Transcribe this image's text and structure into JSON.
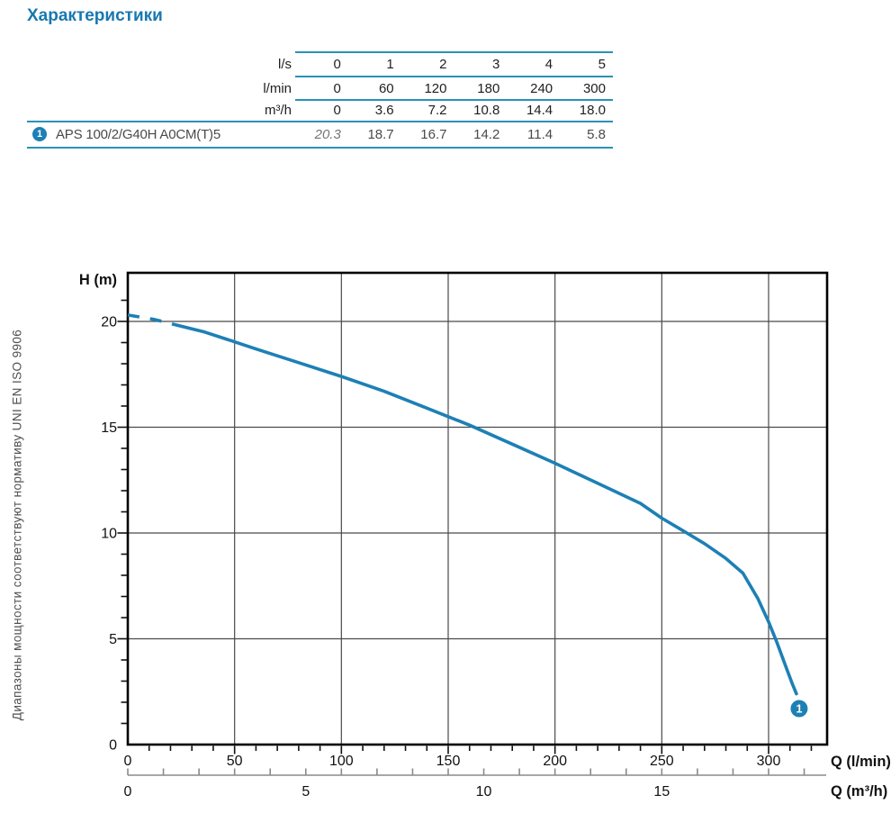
{
  "title": "Характеристики",
  "side_note": "Диапазоны мощности соответствуют нормативу UNI EN ISO 9906",
  "colors": {
    "title": "#1878b0",
    "table_line": "#2a91b7",
    "curve": "#1d80b5",
    "badge": "#1d80b5",
    "grid": "#4a4a4a",
    "axis": "#111111",
    "secondary_axis": "#8a8a8a",
    "note_text": "#4f4f4f",
    "text": "#1f1f1f"
  },
  "table": {
    "unit_rows": [
      {
        "unit": "l/s",
        "values": [
          "0",
          "1",
          "2",
          "3",
          "4",
          "5"
        ]
      },
      {
        "unit": "l/min",
        "values": [
          "0",
          "60",
          "120",
          "180",
          "240",
          "300"
        ]
      },
      {
        "unit": "m³/h",
        "values": [
          "0",
          "3.6",
          "7.2",
          "10.8",
          "14.4",
          "18.0"
        ]
      }
    ],
    "pump_rows": [
      {
        "badge": "1",
        "model": "APS 100/2/G40H A0CM(T)5",
        "values": [
          "20.3",
          "18.7",
          "16.7",
          "14.2",
          "11.4",
          "5.8"
        ]
      }
    ]
  },
  "chart_data": {
    "type": "line",
    "title": "",
    "ylabel": "H (m)",
    "xlabel_primary": "Q (l/min)",
    "xlabel_secondary": "Q (m³/h)",
    "x_range_lmin": [
      0,
      328
    ],
    "y_range_m": [
      0,
      22.3
    ],
    "x_major_ticks_lmin": [
      0,
      50,
      100,
      150,
      200,
      250,
      300
    ],
    "x_minor_step_lmin": 10,
    "x_minor_max_lmin": 320,
    "y_major_ticks_m": [
      0,
      5,
      10,
      15,
      20
    ],
    "y_minor_step_m": 1,
    "y_minor_max_m": 21,
    "secondary_major_ticks_m3h": [
      0,
      5,
      10,
      15
    ],
    "secondary_minor_step_m3h": 1,
    "secondary_minor_max_m3h": 19,
    "lmin_per_m3h": 16.6667,
    "grid_x_lmin": [
      50,
      100,
      150,
      200,
      250,
      300
    ],
    "grid_y_m": [
      5,
      10,
      15,
      20
    ],
    "flow_ls_values": [
      0,
      1,
      2,
      3,
      4,
      5
    ],
    "flow_lmin_values": [
      0,
      60,
      120,
      180,
      240,
      300
    ],
    "flow_m3h_values": [
      0,
      3.6,
      7.2,
      10.8,
      14.4,
      18.0
    ],
    "head_m_values": [
      20.3,
      18.7,
      16.7,
      14.2,
      11.4,
      5.8
    ],
    "series": [
      {
        "name": "APS 100/2/G40H A0CM(T)5",
        "marker_label": "1",
        "marker_at_lmin_h": [
          314.3,
          1.7
        ],
        "dashed_until_lmin": 24,
        "points_lmin_h": [
          [
            0,
            20.3
          ],
          [
            12,
            20.1
          ],
          [
            24,
            19.8
          ],
          [
            36,
            19.5
          ],
          [
            48,
            19.1
          ],
          [
            60,
            18.7
          ],
          [
            80,
            18.05
          ],
          [
            100,
            17.4
          ],
          [
            120,
            16.7
          ],
          [
            140,
            15.9
          ],
          [
            160,
            15.1
          ],
          [
            180,
            14.2
          ],
          [
            200,
            13.3
          ],
          [
            220,
            12.35
          ],
          [
            240,
            11.4
          ],
          [
            250,
            10.7
          ],
          [
            260,
            10.1
          ],
          [
            270,
            9.5
          ],
          [
            280,
            8.8
          ],
          [
            288,
            8.1
          ],
          [
            295,
            6.9
          ],
          [
            300,
            5.8
          ],
          [
            304,
            4.8
          ],
          [
            308,
            3.7
          ],
          [
            311,
            2.9
          ],
          [
            313,
            2.4
          ]
        ]
      }
    ]
  }
}
